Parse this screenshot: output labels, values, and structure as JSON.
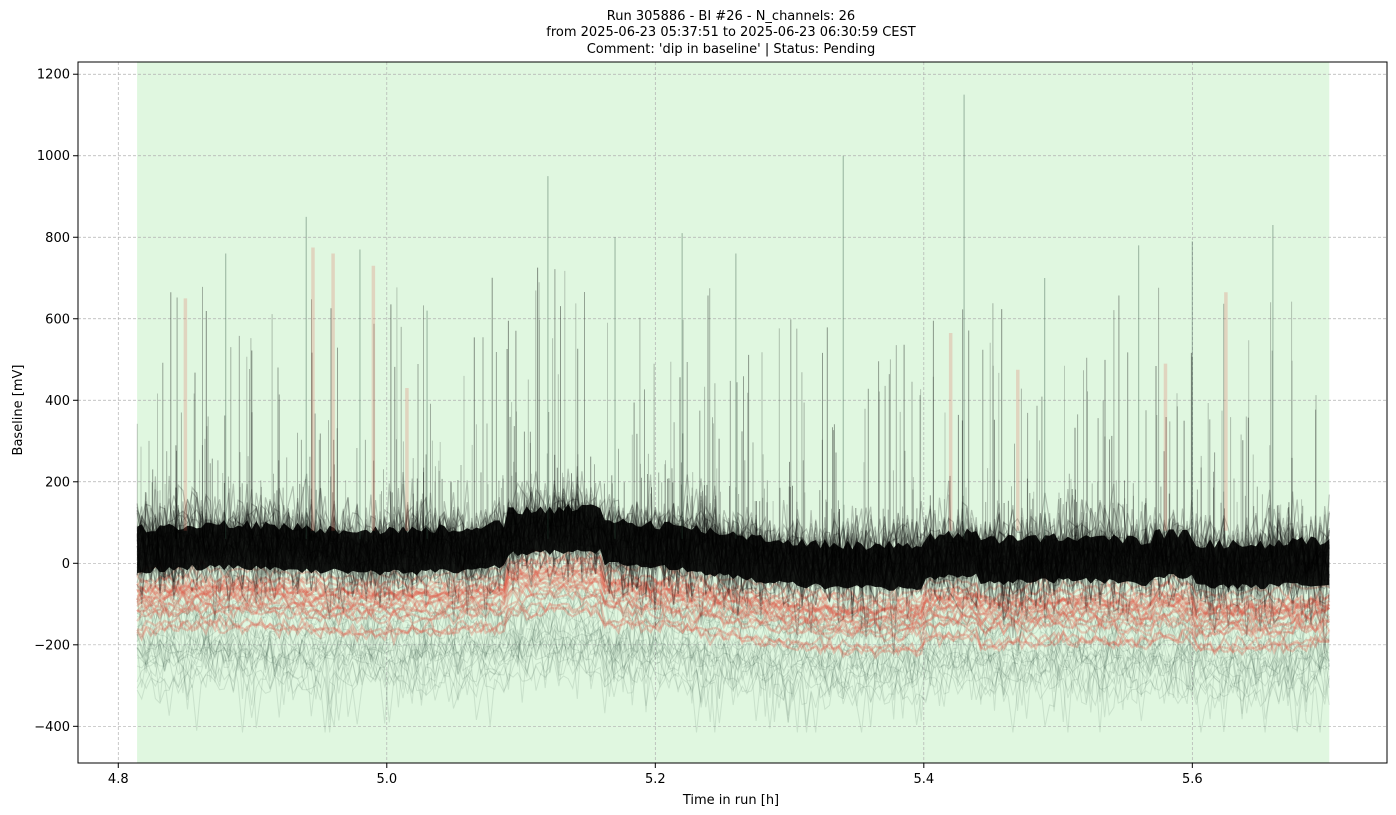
{
  "chart_data": {
    "type": "line",
    "title_lines": [
      "Run 305886  -  BI #26  -  N_channels: 26",
      "from  2025-06-23 05:37:51  to  2025-06-23 06:30:59 CEST",
      "Comment: 'dip in baseline' | Status: Pending"
    ],
    "xlabel": "Time in run [h]",
    "ylabel": "Baseline [mV]",
    "xlim": [
      4.77,
      5.745
    ],
    "ylim": [
      -490,
      1230
    ],
    "xticks": [
      4.8,
      5.0,
      5.2,
      5.4,
      5.6
    ],
    "xtick_labels": [
      "4.8",
      "5.0",
      "5.2",
      "5.4",
      "5.6"
    ],
    "yticks": [
      -400,
      -200,
      0,
      200,
      400,
      600,
      800,
      1000,
      1200
    ],
    "ytick_labels": [
      "−400",
      "−200",
      "0",
      "200",
      "400",
      "600",
      "800",
      "1000",
      "1200"
    ],
    "grid": true,
    "highlight_region": {
      "x_start": 4.814,
      "x_end": 5.702,
      "color": "#e0f7e0"
    },
    "colors": {
      "normal_series": "#000000",
      "flagged_series": "#e05a48",
      "grid": "#b0b0b0"
    },
    "data_summary": {
      "x_range": [
        4.814,
        5.702
      ],
      "dense_band_mV": [
        -60,
        150
      ],
      "central_baseline_mV": 30,
      "max_spike_mV": 1150,
      "max_spike_x": 5.43,
      "min_trace_mV": -410,
      "flagged_traces_range_mV": [
        -220,
        -20
      ]
    }
  }
}
